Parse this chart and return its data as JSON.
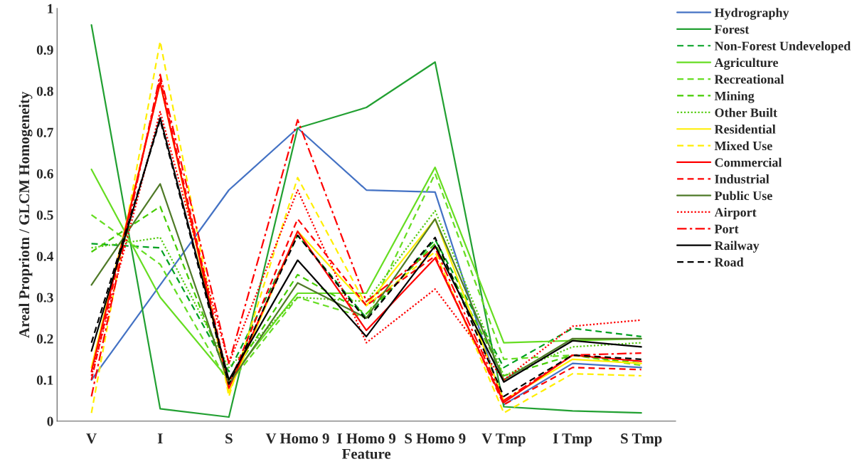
{
  "chart_data": {
    "type": "line",
    "xlabel": "Feature",
    "ylabel": "Areal Propriotn / GLCM Homogeneity",
    "categories": [
      "V",
      "I",
      "S",
      "V Homo 9",
      "I Homo 9",
      "S Homo 9",
      "V Tmp",
      "I Tmp",
      "S Tmp"
    ],
    "ylim": [
      0,
      1
    ],
    "yticks": [
      0,
      0.1,
      0.2,
      0.3,
      0.4,
      0.5,
      0.6,
      0.7,
      0.8,
      0.9,
      1
    ],
    "grid": false,
    "legend": "right",
    "marker": "none",
    "series": [
      {
        "name": "Hydrography",
        "color": "#4472c4",
        "line_style": "solid",
        "values": [
          0.1,
          0.33,
          0.56,
          0.71,
          0.56,
          0.555,
          0.04,
          0.14,
          0.13
        ]
      },
      {
        "name": "Forest",
        "color": "#22a032",
        "line_style": "solid",
        "values": [
          0.96,
          0.03,
          0.01,
          0.71,
          0.76,
          0.87,
          0.035,
          0.025,
          0.02
        ]
      },
      {
        "name": "Non-Forest Undeveloped",
        "color": "#00a020",
        "line_style": "dashed",
        "values": [
          0.43,
          0.42,
          0.12,
          0.45,
          0.25,
          0.44,
          0.13,
          0.225,
          0.205
        ]
      },
      {
        "name": "Agriculture",
        "color": "#66dd22",
        "line_style": "solid",
        "values": [
          0.61,
          0.3,
          0.1,
          0.31,
          0.31,
          0.615,
          0.19,
          0.195,
          0.2
        ]
      },
      {
        "name": "Recreational",
        "color": "#66dd22",
        "line_style": "dashed",
        "values": [
          0.5,
          0.38,
          0.09,
          0.3,
          0.25,
          0.6,
          0.15,
          0.16,
          0.135
        ]
      },
      {
        "name": "Mining",
        "color": "#44cc00",
        "line_style": "dashed",
        "values": [
          0.41,
          0.52,
          0.1,
          0.355,
          0.26,
          0.43,
          0.11,
          0.16,
          0.14
        ]
      },
      {
        "name": "Other Built",
        "color": "#55cc11",
        "line_style": "dotted",
        "values": [
          0.42,
          0.445,
          0.13,
          0.3,
          0.29,
          0.51,
          0.11,
          0.18,
          0.19
        ]
      },
      {
        "name": "Residential",
        "color": "#ffee00",
        "line_style": "solid",
        "values": [
          0.13,
          0.82,
          0.07,
          0.46,
          0.28,
          0.49,
          0.05,
          0.15,
          0.14
        ]
      },
      {
        "name": "Mixed Use",
        "color": "#ffee00",
        "line_style": "dashed",
        "values": [
          0.02,
          0.92,
          0.06,
          0.59,
          0.28,
          0.41,
          0.02,
          0.115,
          0.11
        ]
      },
      {
        "name": "Commercial",
        "color": "#ff0000",
        "line_style": "solid",
        "values": [
          0.12,
          0.82,
          0.08,
          0.46,
          0.22,
          0.395,
          0.045,
          0.16,
          0.145
        ]
      },
      {
        "name": "Industrial",
        "color": "#ff0000",
        "line_style": "dashed",
        "values": [
          0.1,
          0.83,
          0.09,
          0.49,
          0.28,
          0.4,
          0.04,
          0.13,
          0.125
        ]
      },
      {
        "name": "Public Use",
        "color": "#4f7a28",
        "line_style": "solid",
        "values": [
          0.33,
          0.575,
          0.09,
          0.335,
          0.25,
          0.49,
          0.1,
          0.2,
          0.2
        ]
      },
      {
        "name": "Airport",
        "color": "#ff0000",
        "line_style": "dotted",
        "values": [
          0.11,
          0.75,
          0.14,
          0.56,
          0.19,
          0.32,
          0.1,
          0.23,
          0.245
        ]
      },
      {
        "name": "Port",
        "color": "#ff0000",
        "line_style": "dashdot",
        "values": [
          0.06,
          0.84,
          0.14,
          0.73,
          0.29,
          0.42,
          0.05,
          0.16,
          0.165
        ]
      },
      {
        "name": "Railway",
        "color": "#000000",
        "line_style": "solid",
        "values": [
          0.17,
          0.735,
          0.1,
          0.39,
          0.205,
          0.425,
          0.095,
          0.195,
          0.18
        ]
      },
      {
        "name": "Road",
        "color": "#000000",
        "line_style": "dashed",
        "values": [
          0.19,
          0.73,
          0.09,
          0.45,
          0.245,
          0.445,
          0.06,
          0.16,
          0.15
        ]
      }
    ]
  }
}
